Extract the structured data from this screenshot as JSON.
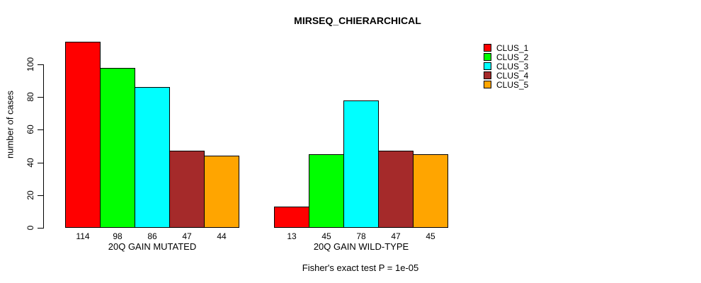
{
  "chart_data": {
    "type": "bar",
    "title": "MIRSEQ_CHIERARCHICAL",
    "ylabel": "number of cases",
    "yticks": [
      0,
      20,
      40,
      60,
      80,
      100
    ],
    "ylim": [
      0,
      100
    ],
    "grid": false,
    "legend_position": "right",
    "series": [
      {
        "name": "CLUS_1",
        "color": "#FF0000"
      },
      {
        "name": "CLUS_2",
        "color": "#00FF00"
      },
      {
        "name": "CLUS_3",
        "color": "#00FFFF"
      },
      {
        "name": "CLUS_4",
        "color": "#A52A2A"
      },
      {
        "name": "CLUS_5",
        "color": "#FFA500"
      }
    ],
    "groups": [
      {
        "label": "20Q GAIN MUTATED",
        "values": [
          114,
          98,
          86,
          47,
          44
        ]
      },
      {
        "label": "20Q GAIN WILD-TYPE",
        "values": [
          13,
          45,
          78,
          47,
          45
        ]
      }
    ],
    "footer": "Fisher's exact test P = 1e-05"
  }
}
